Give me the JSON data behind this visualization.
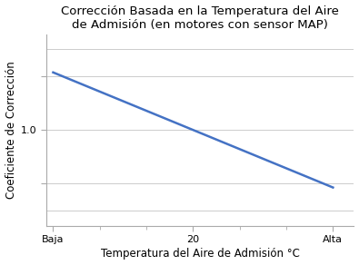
{
  "title_line1": "Corrección Basada en la Temperatura del Aire",
  "title_line2": "de Admisión (en motores con sensor MAP)",
  "xlabel": "Temperatura del Aire de Admisión °C",
  "ylabel": "Coeficiente de Corrección",
  "x_values": [
    0,
    1,
    2
  ],
  "y_values": [
    1.27,
    1.0,
    0.73
  ],
  "x_tick_positions": [
    0,
    1,
    2
  ],
  "x_tick_labels": [
    "Baja",
    "20",
    "Alta"
  ],
  "y_tick_val": 1.0,
  "xlim": [
    -0.05,
    2.15
  ],
  "ylim": [
    0.55,
    1.45
  ],
  "line_color": "#4472C4",
  "line_width": 1.8,
  "grid_color": "#cccccc",
  "grid_linewidth": 0.7,
  "background_color": "#ffffff",
  "title_fontsize": 9.5,
  "title_fontweight": "normal",
  "axis_label_fontsize": 8.5,
  "axis_label_fontweight": "normal",
  "tick_fontsize": 8,
  "spine_color": "#aaaaaa"
}
